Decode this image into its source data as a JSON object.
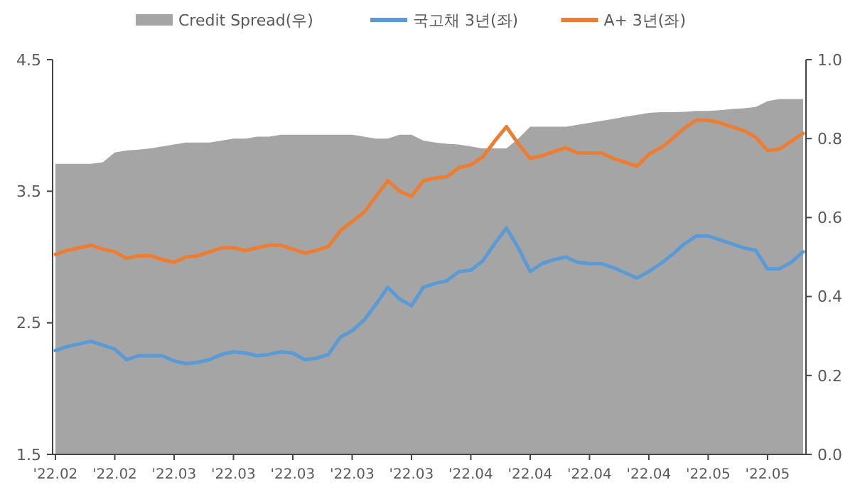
{
  "chart_data": {
    "type": "line",
    "categories": [
      "'22.02",
      null,
      null,
      null,
      null,
      "'22.02",
      null,
      null,
      null,
      null,
      "'22.03",
      null,
      null,
      null,
      null,
      "'22.03",
      null,
      null,
      null,
      null,
      "'22.03",
      null,
      null,
      null,
      null,
      "'22.03",
      null,
      null,
      null,
      null,
      "'22.03",
      null,
      null,
      null,
      null,
      "'22.04",
      null,
      null,
      null,
      null,
      "'22.04",
      null,
      null,
      null,
      null,
      "'22.04",
      null,
      null,
      null,
      null,
      "'22.04",
      null,
      null,
      null,
      null,
      "'22.05",
      null,
      null,
      null,
      null,
      "'22.05",
      null,
      null,
      null
    ],
    "series": [
      {
        "name": "Credit Spread(우)",
        "type": "area",
        "axis": "y2",
        "color": "#a5a5a5",
        "values": [
          0.736,
          0.736,
          0.736,
          0.736,
          0.74,
          0.765,
          0.77,
          0.772,
          0.775,
          0.78,
          0.785,
          0.79,
          0.79,
          0.79,
          0.795,
          0.8,
          0.8,
          0.805,
          0.805,
          0.81,
          0.81,
          0.81,
          0.81,
          0.81,
          0.81,
          0.81,
          0.805,
          0.8,
          0.8,
          0.81,
          0.81,
          0.795,
          0.79,
          0.787,
          0.785,
          0.78,
          0.775,
          0.775,
          0.775,
          0.8,
          0.83,
          0.83,
          0.83,
          0.83,
          0.835,
          0.84,
          0.845,
          0.85,
          0.855,
          0.86,
          0.865,
          0.867,
          0.867,
          0.868,
          0.87,
          0.87,
          0.872,
          0.875,
          0.877,
          0.88,
          0.895,
          0.9,
          0.9,
          0.9
        ]
      },
      {
        "name": "국고채 3년(좌)",
        "color": "#5b9bd5",
        "values": [
          2.29,
          2.32,
          2.34,
          2.36,
          2.33,
          2.3,
          2.22,
          2.25,
          2.25,
          2.25,
          2.21,
          2.19,
          2.2,
          2.22,
          2.26,
          2.28,
          2.27,
          2.25,
          2.26,
          2.28,
          2.27,
          2.22,
          2.23,
          2.26,
          2.39,
          2.44,
          2.52,
          2.64,
          2.77,
          2.68,
          2.63,
          2.77,
          2.8,
          2.82,
          2.89,
          2.9,
          2.97,
          3.1,
          3.22,
          3.07,
          2.89,
          2.95,
          2.98,
          3.0,
          2.96,
          2.95,
          2.95,
          2.92,
          2.88,
          2.84,
          2.89,
          2.95,
          3.02,
          3.1,
          3.16,
          3.16,
          3.13,
          3.1,
          3.07,
          3.05,
          2.91,
          2.91,
          2.96,
          3.04
        ]
      },
      {
        "name": "A+ 3년(좌)",
        "color": "#ed7d31",
        "values": [
          3.02,
          3.05,
          3.07,
          3.09,
          3.06,
          3.04,
          2.99,
          3.01,
          3.01,
          2.98,
          2.96,
          3.0,
          3.01,
          3.04,
          3.07,
          3.07,
          3.05,
          3.07,
          3.09,
          3.09,
          3.06,
          3.03,
          3.05,
          3.08,
          3.2,
          3.27,
          3.34,
          3.46,
          3.58,
          3.5,
          3.46,
          3.58,
          3.6,
          3.61,
          3.68,
          3.7,
          3.76,
          3.88,
          3.99,
          3.86,
          3.75,
          3.77,
          3.8,
          3.83,
          3.79,
          3.79,
          3.79,
          3.75,
          3.72,
          3.69,
          3.78,
          3.83,
          3.9,
          3.98,
          4.04,
          4.04,
          4.02,
          3.99,
          3.96,
          3.91,
          3.81,
          3.82,
          3.88,
          3.94
        ]
      }
    ],
    "ylim": [
      1.5,
      4.5
    ],
    "yticks": [
      1.5,
      2.5,
      3.5,
      4.5
    ],
    "y2lim": [
      0,
      1
    ],
    "y2ticks": [
      {
        "value": 0,
        "label": "0.0"
      },
      0.2,
      0.4,
      0.6,
      0.8,
      {
        "value": 1,
        "label": "1.0"
      }
    ],
    "legend": "top",
    "grid": false
  }
}
